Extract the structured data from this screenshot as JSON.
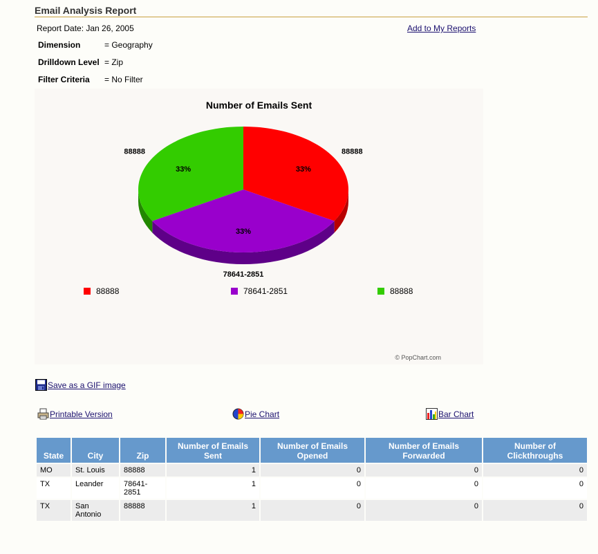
{
  "report": {
    "title": "Email Analysis Report",
    "report_date": "Report Date: Jan 26, 2005",
    "add_link": "Add to My Reports",
    "meta": [
      {
        "label": "Dimension",
        "value": "= Geography"
      },
      {
        "label": "Drilldown Level",
        "value": "= Zip"
      },
      {
        "label": "Filter Criteria",
        "value": "= No Filter"
      }
    ]
  },
  "chart_data": {
    "type": "pie",
    "title": "Number of Emails Sent",
    "slices": [
      {
        "label": "88888",
        "value": 1,
        "percent_label": "33%",
        "color": "#ff0000",
        "side_color": "#b80000"
      },
      {
        "label": "78641-2851",
        "value": 1,
        "percent_label": "33%",
        "color": "#9900cc",
        "side_color": "#5e0088"
      },
      {
        "label": "88888",
        "value": 1,
        "percent_label": "33%",
        "color": "#33cc00",
        "side_color": "#228800"
      }
    ],
    "legend": [
      "88888",
      "78641-2851",
      "88888"
    ],
    "legend_placement": "bottom",
    "watermark": "© PopChart.com"
  },
  "actions": {
    "save_gif": "Save as a GIF image",
    "printable": "Printable Version",
    "pie_chart": "Pie Chart",
    "bar_chart": "Bar Chart"
  },
  "table": {
    "headers": [
      "State",
      "City",
      "Zip",
      "Number of Emails Sent",
      "Number of Emails Opened",
      "Number of Emails Forwarded",
      "Number of Clickthroughs"
    ],
    "rows": [
      [
        "MO",
        "St. Louis",
        "88888",
        "1",
        "0",
        "0",
        "0"
      ],
      [
        "TX",
        "Leander",
        "78641-2851",
        "1",
        "0",
        "0",
        "0"
      ],
      [
        "TX",
        "San Antonio",
        "88888",
        "1",
        "0",
        "0",
        "0"
      ]
    ]
  }
}
